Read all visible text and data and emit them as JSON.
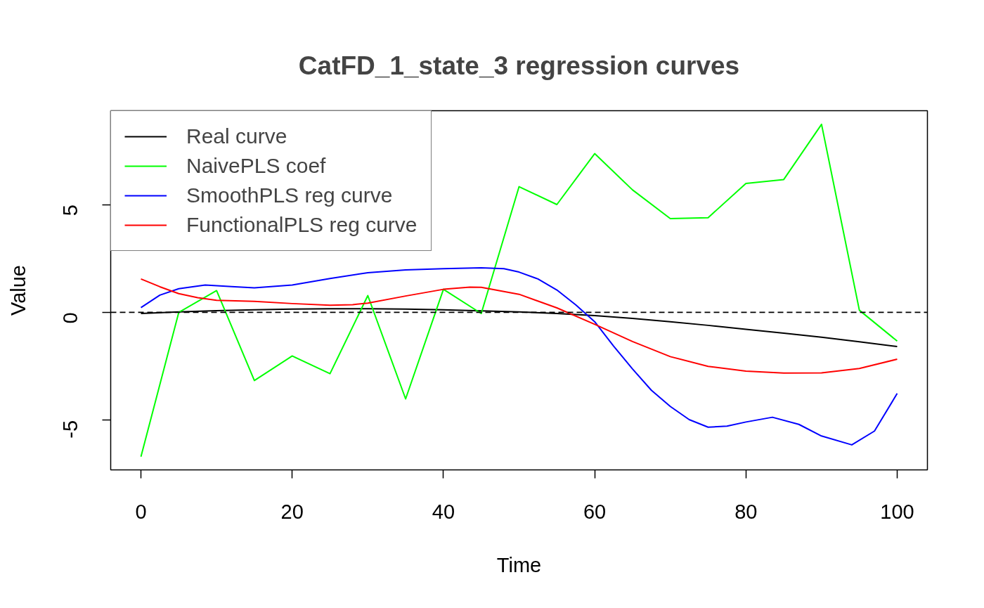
{
  "chart_data": {
    "type": "line",
    "title": "CatFD_1_state_3 regression curves",
    "xlabel": "Time",
    "ylabel": "Value",
    "xlim": [
      -4,
      104
    ],
    "ylim": [
      -7.3,
      9.35
    ],
    "xticks": [
      0,
      20,
      40,
      60,
      80,
      100
    ],
    "yticks": [
      -5,
      0,
      5
    ],
    "grid": false,
    "legend": "top left",
    "line_style": "solid",
    "marker": "none",
    "ref_lines": [
      {
        "axis": "y",
        "value": 0,
        "color": "#000000",
        "line_style": "dashed"
      }
    ],
    "series": [
      {
        "name": "Real curve",
        "color": "#000000",
        "x": [
          0,
          5,
          10,
          15,
          20,
          25,
          30,
          35,
          40,
          45,
          50,
          55,
          60,
          65,
          70,
          75,
          80,
          85,
          90,
          95,
          100
        ],
        "values": [
          -0.05,
          0.02,
          0.08,
          0.12,
          0.15,
          0.17,
          0.17,
          0.15,
          0.12,
          0.07,
          0.02,
          -0.05,
          -0.15,
          -0.28,
          -0.43,
          -0.6,
          -0.78,
          -0.96,
          -1.15,
          -1.36,
          -1.58
        ]
      },
      {
        "name": "NaivePLS coef",
        "color": "#00ff00",
        "x": [
          0,
          5,
          10,
          15,
          20,
          25,
          30,
          35,
          40,
          45,
          50,
          55,
          60,
          65,
          70,
          75,
          80,
          85,
          90,
          95,
          100
        ],
        "values": [
          -6.69,
          0.0,
          1.01,
          -3.16,
          -2.02,
          -2.84,
          0.78,
          -4.01,
          1.07,
          -0.05,
          5.83,
          5.0,
          7.36,
          5.68,
          4.35,
          4.39,
          5.98,
          6.16,
          8.72,
          0.1,
          -1.33
        ]
      },
      {
        "name": "SmoothPLS reg curve",
        "color": "#0000ff",
        "x": [
          0,
          2.5,
          5,
          8.5,
          12,
          15,
          20,
          25,
          30,
          35,
          40,
          45,
          48,
          50,
          52.5,
          55,
          57.5,
          60,
          62.5,
          65,
          67.5,
          70,
          72.5,
          75,
          77.5,
          80,
          83.5,
          87,
          90,
          94,
          97,
          100
        ],
        "values": [
          0.22,
          0.8,
          1.1,
          1.27,
          1.2,
          1.14,
          1.27,
          1.57,
          1.84,
          1.97,
          2.03,
          2.07,
          2.03,
          1.87,
          1.55,
          1.04,
          0.35,
          -0.43,
          -1.56,
          -2.62,
          -3.61,
          -4.36,
          -4.97,
          -5.32,
          -5.27,
          -5.08,
          -4.86,
          -5.19,
          -5.73,
          -6.14,
          -5.5,
          -3.76
        ]
      },
      {
        "name": "FunctionalPLS reg curve",
        "color": "#ff0000",
        "x": [
          0,
          2.5,
          5,
          7.5,
          10,
          15,
          20,
          25,
          28,
          30,
          35,
          40,
          43.5,
          45,
          50,
          55,
          60,
          65,
          70,
          75,
          80,
          85,
          90,
          95,
          100
        ],
        "values": [
          1.55,
          1.19,
          0.87,
          0.68,
          0.56,
          0.51,
          0.41,
          0.33,
          0.36,
          0.43,
          0.76,
          1.07,
          1.17,
          1.16,
          0.84,
          0.21,
          -0.55,
          -1.35,
          -2.05,
          -2.5,
          -2.72,
          -2.81,
          -2.8,
          -2.6,
          -2.17
        ]
      }
    ]
  }
}
